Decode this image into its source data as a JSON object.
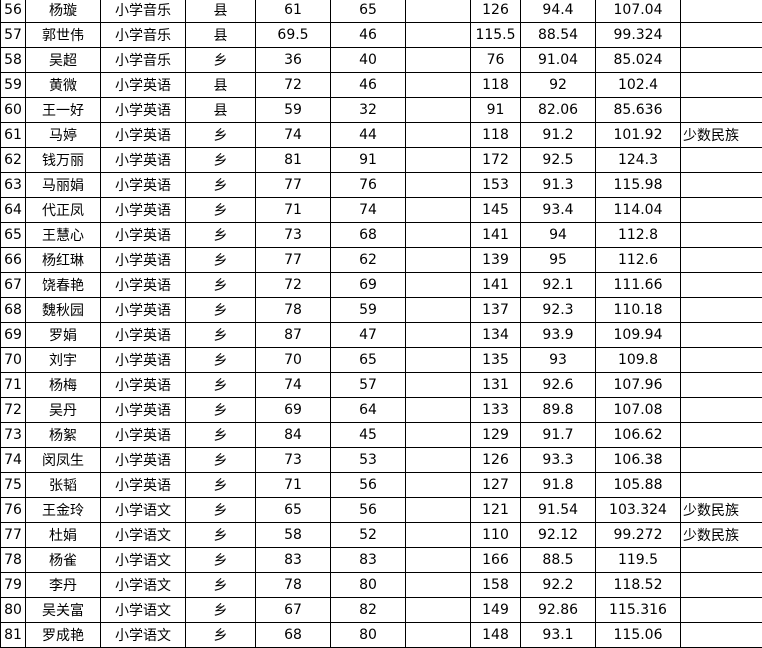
{
  "table": {
    "rows": [
      {
        "cells": [
          "56",
          "杨璇",
          "小学音乐",
          "县",
          "61",
          "65",
          "126",
          "94.4",
          "107.04"
        ]
      },
      {
        "cells": [
          "57",
          "郭世伟",
          "小学音乐",
          "县",
          "69.5",
          "46",
          "115.5",
          "88.54",
          "99.324"
        ]
      },
      {
        "cells": [
          "58",
          "吴超",
          "小学音乐",
          "乡",
          "36",
          "40",
          "76",
          "91.04",
          "85.024"
        ]
      },
      {
        "cells": [
          "59",
          "黄微",
          "小学英语",
          "县",
          "72",
          "46",
          "118",
          "92",
          "102.4"
        ]
      },
      {
        "cells": [
          "60",
          "王一好",
          "小学英语",
          "县",
          "59",
          "32",
          "91",
          "82.06",
          "85.636"
        ]
      },
      {
        "cells": [
          "61",
          "马婷",
          "小学英语",
          "乡",
          "74",
          "44",
          "118",
          "91.2",
          "101.92"
        ],
        "note": "少数民族"
      },
      {
        "cells": [
          "62",
          "钱万丽",
          "小学英语",
          "乡",
          "81",
          "91",
          "172",
          "92.5",
          "124.3"
        ]
      },
      {
        "cells": [
          "63",
          "马丽娟",
          "小学英语",
          "乡",
          "77",
          "76",
          "153",
          "91.3",
          "115.98"
        ]
      },
      {
        "cells": [
          "64",
          "代正凤",
          "小学英语",
          "乡",
          "71",
          "74",
          "145",
          "93.4",
          "114.04"
        ]
      },
      {
        "cells": [
          "65",
          "王慧心",
          "小学英语",
          "乡",
          "73",
          "68",
          "141",
          "94",
          "112.8"
        ]
      },
      {
        "cells": [
          "66",
          "杨红琳",
          "小学英语",
          "乡",
          "77",
          "62",
          "139",
          "95",
          "112.6"
        ]
      },
      {
        "cells": [
          "67",
          "饶春艳",
          "小学英语",
          "乡",
          "72",
          "69",
          "141",
          "92.1",
          "111.66"
        ]
      },
      {
        "cells": [
          "68",
          "魏秋园",
          "小学英语",
          "乡",
          "78",
          "59",
          "137",
          "92.3",
          "110.18"
        ]
      },
      {
        "cells": [
          "69",
          "罗娟",
          "小学英语",
          "乡",
          "87",
          "47",
          "134",
          "93.9",
          "109.94"
        ]
      },
      {
        "cells": [
          "70",
          "刘宇",
          "小学英语",
          "乡",
          "70",
          "65",
          "135",
          "93",
          "109.8"
        ]
      },
      {
        "cells": [
          "71",
          "杨梅",
          "小学英语",
          "乡",
          "74",
          "57",
          "131",
          "92.6",
          "107.96"
        ]
      },
      {
        "cells": [
          "72",
          "吴丹",
          "小学英语",
          "乡",
          "69",
          "64",
          "133",
          "89.8",
          "107.08"
        ]
      },
      {
        "cells": [
          "73",
          "杨絮",
          "小学英语",
          "乡",
          "84",
          "45",
          "129",
          "91.7",
          "106.62"
        ]
      },
      {
        "cells": [
          "74",
          "闵凤生",
          "小学英语",
          "乡",
          "73",
          "53",
          "126",
          "93.3",
          "106.38"
        ]
      },
      {
        "cells": [
          "75",
          "张韬",
          "小学英语",
          "乡",
          "71",
          "56",
          "127",
          "91.8",
          "105.88"
        ]
      },
      {
        "cells": [
          "76",
          "王金玲",
          "小学语文",
          "乡",
          "65",
          "56",
          "121",
          "91.54",
          "103.324"
        ],
        "note": "少数民族"
      },
      {
        "cells": [
          "77",
          "杜娟",
          "小学语文",
          "乡",
          "58",
          "52",
          "110",
          "92.12",
          "99.272"
        ],
        "note": "少数民族"
      },
      {
        "cells": [
          "78",
          "杨雀",
          "小学语文",
          "乡",
          "83",
          "83",
          "166",
          "88.5",
          "119.5"
        ]
      },
      {
        "cells": [
          "79",
          "李丹",
          "小学语文",
          "乡",
          "78",
          "80",
          "158",
          "92.2",
          "118.52"
        ]
      },
      {
        "cells": [
          "80",
          "吴关富",
          "小学语文",
          "乡",
          "67",
          "82",
          "149",
          "92.86",
          "115.316"
        ]
      },
      {
        "cells": [
          "81",
          "罗成艳",
          "小学语文",
          "乡",
          "68",
          "80",
          "148",
          "93.1",
          "115.06"
        ]
      }
    ]
  }
}
